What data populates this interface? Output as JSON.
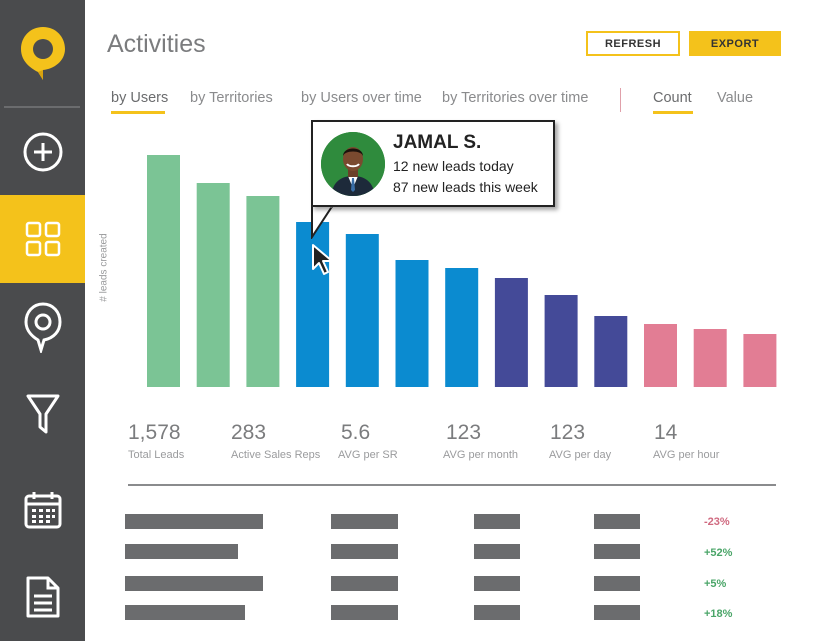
{
  "page": {
    "title": "Activities"
  },
  "buttons": {
    "refresh": "REFRESH",
    "export": "EXPORT"
  },
  "sidebar": {
    "logo_icon": "map-pin-logo-icon",
    "items": [
      {
        "icon": "plus-circle-icon",
        "active": false
      },
      {
        "icon": "grid-icon",
        "active": true
      },
      {
        "icon": "map-pin-icon",
        "active": false
      },
      {
        "icon": "funnel-icon",
        "active": false
      },
      {
        "icon": "calendar-icon",
        "active": false
      },
      {
        "icon": "document-icon",
        "active": false
      }
    ]
  },
  "tabs": [
    {
      "label": "by Users",
      "active": true
    },
    {
      "label": "by Territories",
      "active": false
    },
    {
      "label": "by Users over time",
      "active": false
    },
    {
      "label": "by Territories over time",
      "active": false
    }
  ],
  "measure_tabs": [
    {
      "label": "Count",
      "active": true
    },
    {
      "label": "Value",
      "active": false
    }
  ],
  "colors": {
    "accent": "#f4c21b",
    "green": "#7bc495",
    "blue": "#0b8bd0",
    "indigo": "#444a98",
    "pink": "#e27d94",
    "negative": "#d06a80",
    "positive": "#4aa568"
  },
  "chart_data": {
    "type": "bar",
    "ylabel": "# leads created",
    "values": [
      232,
      204,
      191,
      165,
      153,
      127,
      119,
      109,
      92,
      71,
      63,
      58,
      53
    ],
    "value_note": "relative heights, no axis printed",
    "color_groups": [
      "green",
      "green",
      "green",
      "blue",
      "blue",
      "blue",
      "blue",
      "indigo",
      "indigo",
      "indigo",
      "pink",
      "pink",
      "pink"
    ],
    "highlighted_index": 3
  },
  "tooltip": {
    "name": "JAMAL S.",
    "line1": "12 new leads today",
    "line2": "87 new leads this week"
  },
  "stats": [
    {
      "value": "1,578",
      "label": "Total Leads"
    },
    {
      "value": "283",
      "label": "Active Sales Reps"
    },
    {
      "value": "5.6",
      "label": "AVG per SR"
    },
    {
      "value": "123",
      "label": "AVG per month"
    },
    {
      "value": "123",
      "label": "AVG per day"
    },
    {
      "value": "14",
      "label": "AVG per hour"
    }
  ],
  "table_rows": [
    {
      "change": "-23%",
      "trend": "negative"
    },
    {
      "change": "+52%",
      "trend": "positive"
    },
    {
      "change": "+5%",
      "trend": "positive"
    },
    {
      "change": "+18%",
      "trend": "positive"
    }
  ]
}
